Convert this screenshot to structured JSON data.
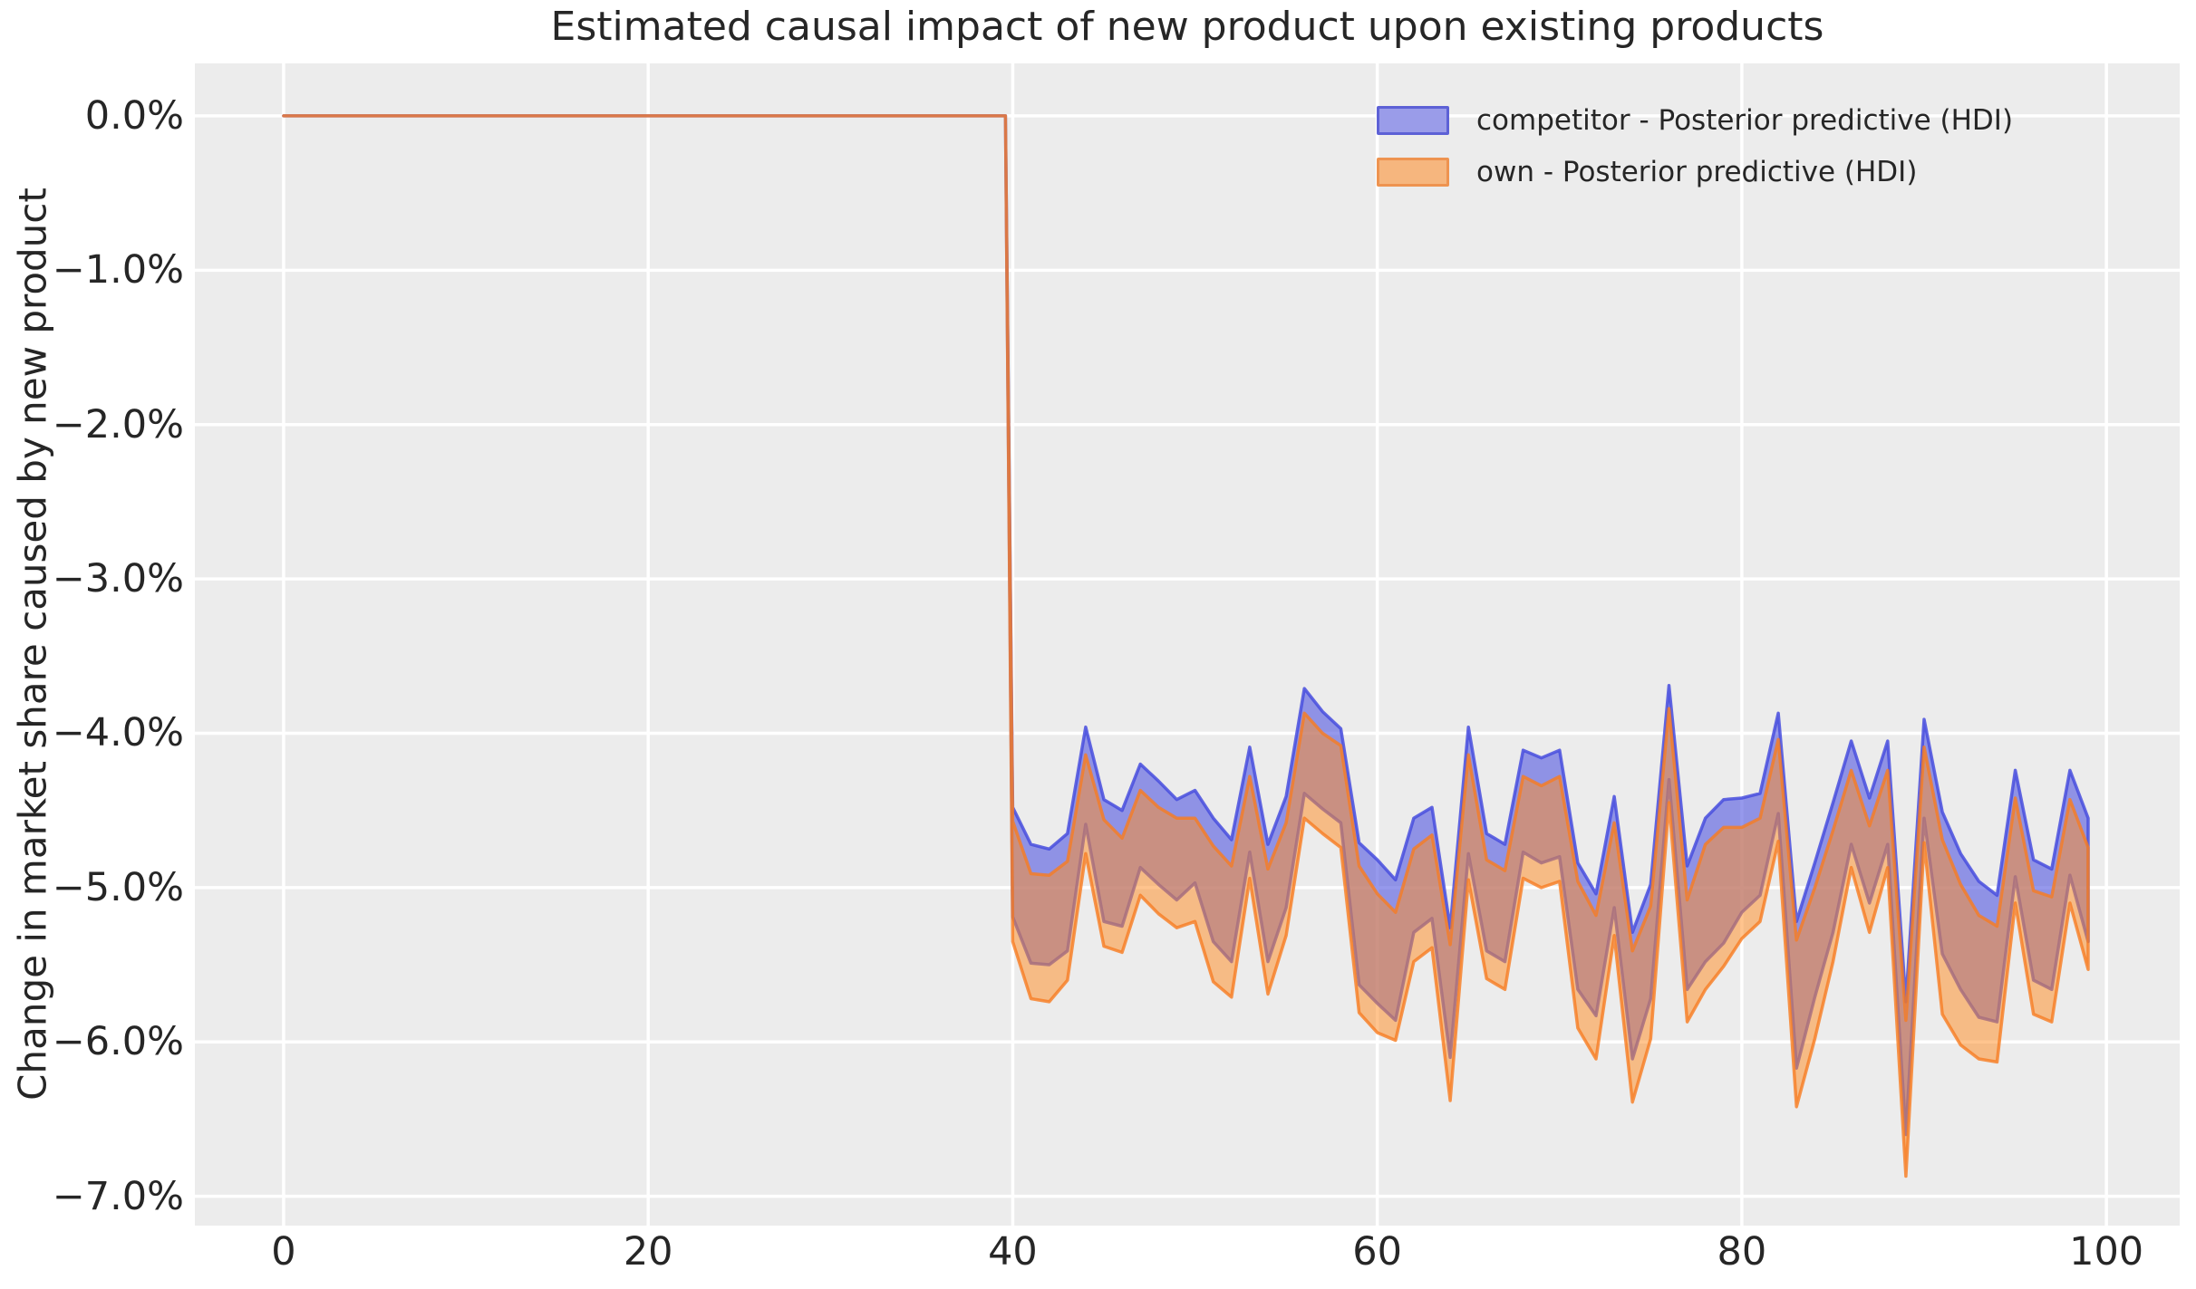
{
  "figure": {
    "title": "Estimated causal impact of new product upon existing products",
    "ylabel": "Change in market share caused by new product",
    "xlabel": "",
    "background_color": "#ffffff",
    "plot_background_color": "#ececec",
    "grid_color": "#ffffff",
    "text_color": "#262626"
  },
  "legend": {
    "items": [
      {
        "label": "competitor - Posterior predictive (HDI)",
        "swatch_fill": "#9a9ce9",
        "swatch_border": "#5d61d6"
      },
      {
        "label": "own - Posterior predictive (HDI)",
        "swatch_fill": "#f6b67e",
        "swatch_border": "#ee9350"
      }
    ]
  },
  "chart_data": {
    "type": "area",
    "title": "Estimated causal impact of new product upon existing products",
    "xlabel": "",
    "ylabel": "Change in market share caused by new product",
    "grid": true,
    "legend_position": "upper right",
    "xlim": [
      -4.87,
      104.02
    ],
    "ylim": [
      -7.19,
      0.34
    ],
    "x_ticks": [
      {
        "label": "0",
        "value": 0
      },
      {
        "label": "20",
        "value": 20
      },
      {
        "label": "40",
        "value": 40
      },
      {
        "label": "60",
        "value": 60
      },
      {
        "label": "80",
        "value": 80
      },
      {
        "label": "100",
        "value": 100
      }
    ],
    "y_ticks": [
      {
        "label": "0.0%",
        "value": 0.0
      },
      {
        "label": "−1.0%",
        "value": -1.0
      },
      {
        "label": "−2.0%",
        "value": -2.0
      },
      {
        "label": "−3.0%",
        "value": -3.0
      },
      {
        "label": "−4.0%",
        "value": -4.0
      },
      {
        "label": "−5.0%",
        "value": -5.0
      },
      {
        "label": "−6.0%",
        "value": -6.0
      },
      {
        "label": "−7.0%",
        "value": -7.0
      }
    ],
    "pre_period": {
      "x_start": 0,
      "x_end": 39.6,
      "value": 0.0
    },
    "intervention_x": 40,
    "x": [
      40,
      41,
      42,
      43,
      44,
      45,
      46,
      47,
      48,
      49,
      50,
      51,
      52,
      53,
      54,
      55,
      56,
      57,
      58,
      59,
      60,
      61,
      62,
      63,
      64,
      65,
      66,
      67,
      68,
      69,
      70,
      71,
      72,
      73,
      74,
      75,
      76,
      77,
      78,
      79,
      80,
      81,
      82,
      83,
      84,
      85,
      86,
      87,
      88,
      89,
      90,
      91,
      92,
      93,
      94,
      95,
      96,
      97,
      98,
      99
    ],
    "series": [
      {
        "name": "competitor - Posterior predictive (HDI)",
        "color": "#5558e0",
        "fill_rgba": "rgba(85,90,225,0.62)",
        "stroke_rgba": "rgba(72,77,222,0.85)",
        "upper": [
          -4.48,
          -4.72,
          -4.75,
          -4.65,
          -3.96,
          -4.43,
          -4.5,
          -4.2,
          -4.31,
          -4.43,
          -4.37,
          -4.55,
          -4.69,
          -4.09,
          -4.72,
          -4.41,
          -3.71,
          -3.86,
          -3.97,
          -4.71,
          -4.82,
          -4.95,
          -4.55,
          -4.48,
          -5.26,
          -3.96,
          -4.65,
          -4.72,
          -4.11,
          -4.16,
          -4.11,
          -4.84,
          -5.04,
          -4.41,
          -5.29,
          -4.98,
          -3.69,
          -4.86,
          -4.55,
          -4.43,
          -4.42,
          -4.39,
          -3.87,
          -5.22,
          -4.84,
          -4.45,
          -4.05,
          -4.42,
          -4.05,
          -5.74,
          -3.91,
          -4.51,
          -4.78,
          -4.96,
          -5.05,
          -4.24,
          -4.82,
          -4.88,
          -4.24,
          -4.55
        ],
        "lower": [
          -5.19,
          -5.49,
          -5.5,
          -5.41,
          -4.59,
          -5.22,
          -5.25,
          -4.87,
          -4.98,
          -5.08,
          -4.97,
          -5.35,
          -5.48,
          -4.77,
          -5.48,
          -5.13,
          -4.39,
          -4.49,
          -4.58,
          -5.63,
          -5.75,
          -5.86,
          -5.29,
          -5.2,
          -6.1,
          -4.78,
          -5.41,
          -5.48,
          -4.77,
          -4.84,
          -4.8,
          -5.66,
          -5.83,
          -5.13,
          -6.11,
          -5.72,
          -4.3,
          -5.66,
          -5.48,
          -5.36,
          -5.16,
          -5.05,
          -4.52,
          -6.17,
          -5.71,
          -5.29,
          -4.72,
          -5.1,
          -4.72,
          -6.6,
          -4.55,
          -5.43,
          -5.66,
          -5.84,
          -5.87,
          -4.93,
          -5.6,
          -5.66,
          -4.92,
          -5.35
        ]
      },
      {
        "name": "own - Posterior predictive (HDI)",
        "color": "#ff8c23",
        "fill_rgba": "rgba(255,141,38,0.52)",
        "stroke_rgba": "rgba(248,124,32,0.80)",
        "upper": [
          -4.57,
          -4.91,
          -4.92,
          -4.83,
          -4.14,
          -4.56,
          -4.68,
          -4.37,
          -4.48,
          -4.55,
          -4.55,
          -4.73,
          -4.86,
          -4.28,
          -4.88,
          -4.58,
          -3.87,
          -4.0,
          -4.08,
          -4.86,
          -5.04,
          -5.16,
          -4.75,
          -4.66,
          -5.37,
          -4.14,
          -4.82,
          -4.89,
          -4.28,
          -4.34,
          -4.28,
          -4.96,
          -5.18,
          -4.58,
          -5.41,
          -5.12,
          -3.84,
          -5.08,
          -4.72,
          -4.61,
          -4.61,
          -4.55,
          -4.04,
          -5.34,
          -5.0,
          -4.63,
          -4.24,
          -4.6,
          -4.24,
          -5.86,
          -4.09,
          -4.69,
          -4.98,
          -5.18,
          -5.25,
          -4.42,
          -5.02,
          -5.06,
          -4.43,
          -4.74
        ],
        "lower": [
          -5.35,
          -5.72,
          -5.74,
          -5.6,
          -4.78,
          -5.38,
          -5.42,
          -5.05,
          -5.17,
          -5.26,
          -5.22,
          -5.61,
          -5.71,
          -4.94,
          -5.69,
          -5.31,
          -4.55,
          -4.65,
          -4.74,
          -5.81,
          -5.94,
          -5.99,
          -5.48,
          -5.39,
          -6.38,
          -4.95,
          -5.59,
          -5.66,
          -4.94,
          -5.0,
          -4.96,
          -5.91,
          -6.11,
          -5.31,
          -6.39,
          -5.98,
          -4.45,
          -5.87,
          -5.66,
          -5.51,
          -5.33,
          -5.22,
          -4.7,
          -6.42,
          -5.98,
          -5.48,
          -4.87,
          -5.29,
          -4.87,
          -6.87,
          -4.71,
          -5.82,
          -6.02,
          -6.11,
          -6.13,
          -5.1,
          -5.82,
          -5.87,
          -5.1,
          -5.53
        ]
      }
    ]
  }
}
